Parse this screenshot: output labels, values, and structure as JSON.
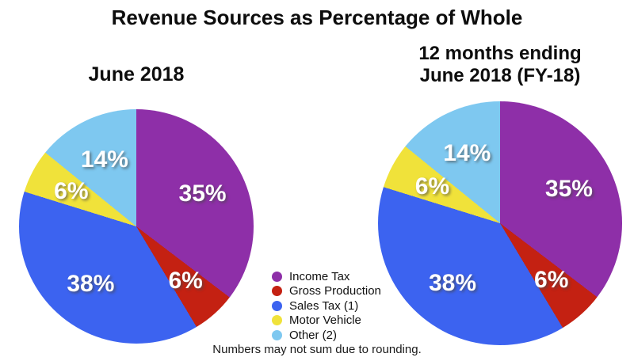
{
  "title": "Revenue Sources as Percentage of Whole",
  "footnote": "Numbers may not sum due to rounding.",
  "legend": {
    "position": "center-between-pies",
    "items": [
      {
        "label": "Income Tax",
        "color": "#8E2FA8"
      },
      {
        "label": "Gross Production",
        "color": "#C42112"
      },
      {
        "label": "Sales Tax (1)",
        "color": "#3C63F0"
      },
      {
        "label": "Motor Vehicle",
        "color": "#F0E23A"
      },
      {
        "label": "Other (2)",
        "color": "#7EC8F0"
      }
    ]
  },
  "chart_data": [
    {
      "type": "pie",
      "title": "June 2018",
      "categories": [
        "Income Tax",
        "Gross Production",
        "Sales Tax (1)",
        "Motor Vehicle",
        "Other (2)"
      ],
      "values": [
        35,
        6,
        38,
        6,
        14
      ],
      "value_labels": [
        "35%",
        "6%",
        "38%",
        "6%",
        "14%"
      ],
      "colors": [
        "#8E2FA8",
        "#C42112",
        "#3C63F0",
        "#F0E23A",
        "#7EC8F0"
      ],
      "start_angle_deg": 0,
      "direction": "clockwise",
      "units": "percent"
    },
    {
      "type": "pie",
      "title": "12 months ending June 2018 (FY-18)",
      "title_lines": [
        "12 months ending",
        "June 2018 (FY-18)"
      ],
      "categories": [
        "Income Tax",
        "Gross Production",
        "Sales Tax (1)",
        "Motor Vehicle",
        "Other (2)"
      ],
      "values": [
        35,
        6,
        38,
        6,
        14
      ],
      "value_labels": [
        "35%",
        "6%",
        "38%",
        "6%",
        "14%"
      ],
      "colors": [
        "#8E2FA8",
        "#C42112",
        "#3C63F0",
        "#F0E23A",
        "#7EC8F0"
      ],
      "start_angle_deg": 0,
      "direction": "clockwise",
      "units": "percent"
    }
  ]
}
